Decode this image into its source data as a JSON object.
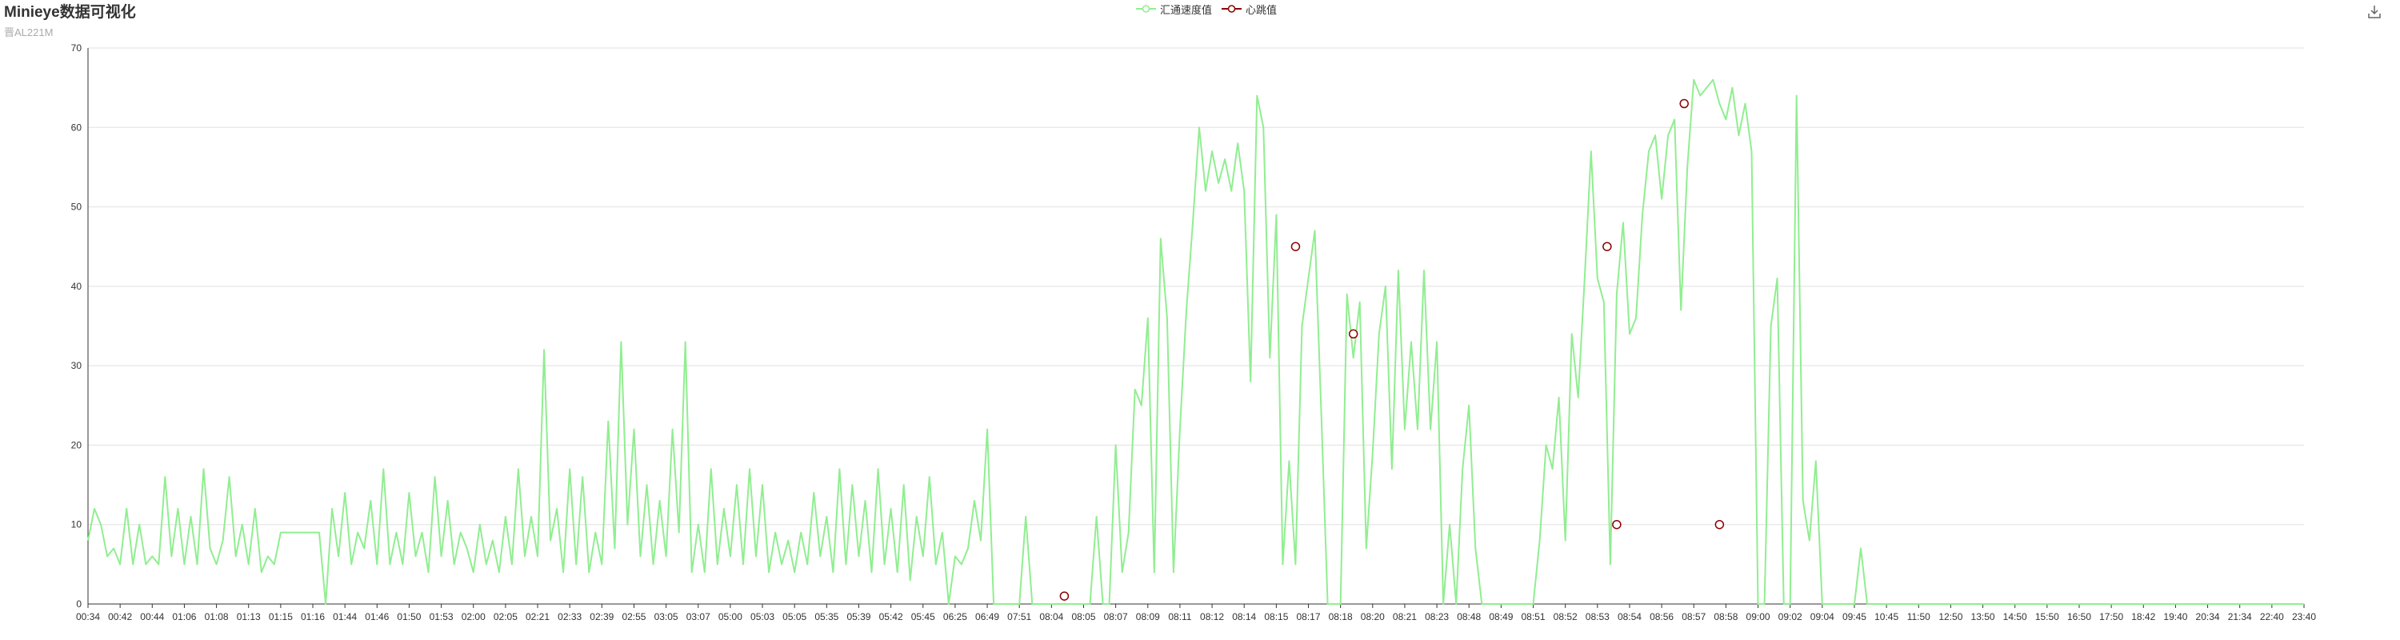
{
  "header": {
    "title": "Minieye数据可视化",
    "subtitle": "晋AL221M"
  },
  "legend": [
    {
      "name": "汇通速度值",
      "color": "#90EE90"
    },
    {
      "name": "心跳值",
      "color": "#8B0000"
    }
  ],
  "toolbox": {
    "icon": "download-icon"
  },
  "chart_data": {
    "type": "line",
    "ylim": [
      0,
      70
    ],
    "yticks": [
      0,
      10,
      20,
      30,
      40,
      50,
      60,
      70
    ],
    "grid": true,
    "legend_position": "top-center",
    "x_tick_labels": [
      "00:34",
      "00:42",
      "00:44",
      "01:06",
      "01:08",
      "01:13",
      "01:15",
      "01:16",
      "01:44",
      "01:46",
      "01:50",
      "01:53",
      "02:00",
      "02:05",
      "02:21",
      "02:33",
      "02:39",
      "02:55",
      "03:05",
      "03:07",
      "05:00",
      "05:03",
      "05:05",
      "05:35",
      "05:39",
      "05:42",
      "05:45",
      "06:25",
      "06:49",
      "07:51",
      "08:04",
      "08:05",
      "08:07",
      "08:09",
      "08:11",
      "08:12",
      "08:14",
      "08:15",
      "08:17",
      "08:18",
      "08:20",
      "08:21",
      "08:23",
      "08:48",
      "08:49",
      "08:51",
      "08:52",
      "08:53",
      "08:54",
      "08:56",
      "08:57",
      "08:58",
      "09:00",
      "09:02",
      "09:04",
      "09:45",
      "10:45",
      "11:50",
      "12:50",
      "13:50",
      "14:50",
      "15:50",
      "16:50",
      "17:50",
      "18:42",
      "19:40",
      "20:34",
      "21:34",
      "22:40",
      "23:40"
    ],
    "series": [
      {
        "name": "汇通速度值",
        "color": "#90EE90",
        "kind": "line",
        "points": [
          [
            0,
            8
          ],
          [
            0.2,
            12
          ],
          [
            0.4,
            10
          ],
          [
            0.6,
            6
          ],
          [
            0.8,
            7
          ],
          [
            1,
            5
          ],
          [
            1.2,
            12
          ],
          [
            1.4,
            5
          ],
          [
            1.6,
            10
          ],
          [
            1.8,
            5
          ],
          [
            2,
            6
          ],
          [
            2.2,
            5
          ],
          [
            2.4,
            16
          ],
          [
            2.6,
            6
          ],
          [
            2.8,
            12
          ],
          [
            3,
            5
          ],
          [
            3.2,
            11
          ],
          [
            3.4,
            5
          ],
          [
            3.6,
            17
          ],
          [
            3.8,
            7
          ],
          [
            4,
            5
          ],
          [
            4.2,
            8
          ],
          [
            4.4,
            16
          ],
          [
            4.6,
            6
          ],
          [
            4.8,
            10
          ],
          [
            5,
            5
          ],
          [
            5.2,
            12
          ],
          [
            5.4,
            4
          ],
          [
            5.6,
            6
          ],
          [
            5.8,
            5
          ],
          [
            6,
            9
          ],
          [
            6.5,
            9
          ],
          [
            7,
            9
          ],
          [
            7.2,
            9
          ],
          [
            7.4,
            0
          ],
          [
            7.6,
            12
          ],
          [
            7.8,
            6
          ],
          [
            8,
            14
          ],
          [
            8.2,
            5
          ],
          [
            8.4,
            9
          ],
          [
            8.6,
            7
          ],
          [
            8.8,
            13
          ],
          [
            9,
            5
          ],
          [
            9.2,
            17
          ],
          [
            9.4,
            5
          ],
          [
            9.6,
            9
          ],
          [
            9.8,
            5
          ],
          [
            10,
            14
          ],
          [
            10.2,
            6
          ],
          [
            10.4,
            9
          ],
          [
            10.6,
            4
          ],
          [
            10.8,
            16
          ],
          [
            11,
            6
          ],
          [
            11.2,
            13
          ],
          [
            11.4,
            5
          ],
          [
            11.6,
            9
          ],
          [
            11.8,
            7
          ],
          [
            12,
            4
          ],
          [
            12.2,
            10
          ],
          [
            12.4,
            5
          ],
          [
            12.6,
            8
          ],
          [
            12.8,
            4
          ],
          [
            13,
            11
          ],
          [
            13.2,
            5
          ],
          [
            13.4,
            17
          ],
          [
            13.6,
            6
          ],
          [
            13.8,
            11
          ],
          [
            14,
            6
          ],
          [
            14.2,
            32
          ],
          [
            14.4,
            8
          ],
          [
            14.6,
            12
          ],
          [
            14.8,
            4
          ],
          [
            15,
            17
          ],
          [
            15.2,
            5
          ],
          [
            15.4,
            16
          ],
          [
            15.6,
            4
          ],
          [
            15.8,
            9
          ],
          [
            16,
            5
          ],
          [
            16.2,
            23
          ],
          [
            16.4,
            7
          ],
          [
            16.6,
            33
          ],
          [
            16.8,
            10
          ],
          [
            17,
            22
          ],
          [
            17.2,
            6
          ],
          [
            17.4,
            15
          ],
          [
            17.6,
            5
          ],
          [
            17.8,
            13
          ],
          [
            18,
            6
          ],
          [
            18.2,
            22
          ],
          [
            18.4,
            9
          ],
          [
            18.6,
            33
          ],
          [
            18.8,
            4
          ],
          [
            19,
            10
          ],
          [
            19.2,
            4
          ],
          [
            19.4,
            17
          ],
          [
            19.6,
            5
          ],
          [
            19.8,
            12
          ],
          [
            20,
            6
          ],
          [
            20.2,
            15
          ],
          [
            20.4,
            5
          ],
          [
            20.6,
            17
          ],
          [
            20.8,
            6
          ],
          [
            21,
            15
          ],
          [
            21.2,
            4
          ],
          [
            21.4,
            9
          ],
          [
            21.6,
            5
          ],
          [
            21.8,
            8
          ],
          [
            22,
            4
          ],
          [
            22.2,
            9
          ],
          [
            22.4,
            5
          ],
          [
            22.6,
            14
          ],
          [
            22.8,
            6
          ],
          [
            23,
            11
          ],
          [
            23.2,
            4
          ],
          [
            23.4,
            17
          ],
          [
            23.6,
            5
          ],
          [
            23.8,
            15
          ],
          [
            24,
            6
          ],
          [
            24.2,
            13
          ],
          [
            24.4,
            4
          ],
          [
            24.6,
            17
          ],
          [
            24.8,
            5
          ],
          [
            25,
            12
          ],
          [
            25.2,
            4
          ],
          [
            25.4,
            15
          ],
          [
            25.6,
            3
          ],
          [
            25.8,
            11
          ],
          [
            26,
            6
          ],
          [
            26.2,
            16
          ],
          [
            26.4,
            5
          ],
          [
            26.6,
            9
          ],
          [
            26.8,
            0
          ],
          [
            27,
            6
          ],
          [
            27.2,
            5
          ],
          [
            27.4,
            7
          ],
          [
            27.6,
            13
          ],
          [
            27.8,
            8
          ],
          [
            28,
            22
          ],
          [
            28.2,
            0
          ],
          [
            28.4,
            0
          ],
          [
            28.6,
            0
          ],
          [
            28.8,
            0
          ],
          [
            29,
            0
          ],
          [
            29.2,
            11
          ],
          [
            29.4,
            0
          ],
          [
            29.6,
            0
          ],
          [
            29.8,
            0
          ],
          [
            30,
            0
          ],
          [
            30.2,
            0
          ],
          [
            30.4,
            0
          ],
          [
            30.6,
            0
          ],
          [
            30.8,
            0
          ],
          [
            31,
            0
          ],
          [
            31.2,
            0
          ],
          [
            31.4,
            11
          ],
          [
            31.6,
            0
          ],
          [
            31.8,
            0
          ],
          [
            32,
            20
          ],
          [
            32.2,
            4
          ],
          [
            32.4,
            9
          ],
          [
            32.6,
            27
          ],
          [
            32.8,
            25
          ],
          [
            33,
            36
          ],
          [
            33.2,
            4
          ],
          [
            33.4,
            46
          ],
          [
            33.6,
            36
          ],
          [
            33.8,
            4
          ],
          [
            34,
            22
          ],
          [
            34.2,
            37
          ],
          [
            34.4,
            48
          ],
          [
            34.6,
            60
          ],
          [
            34.8,
            52
          ],
          [
            35,
            57
          ],
          [
            35.2,
            53
          ],
          [
            35.4,
            56
          ],
          [
            35.6,
            52
          ],
          [
            35.8,
            58
          ],
          [
            36,
            52
          ],
          [
            36.2,
            28
          ],
          [
            36.4,
            64
          ],
          [
            36.6,
            60
          ],
          [
            36.8,
            31
          ],
          [
            37,
            49
          ],
          [
            37.2,
            5
          ],
          [
            37.4,
            18
          ],
          [
            37.6,
            5
          ],
          [
            37.8,
            35
          ],
          [
            38,
            41
          ],
          [
            38.2,
            47
          ],
          [
            38.4,
            24
          ],
          [
            38.6,
            0
          ],
          [
            38.8,
            0
          ],
          [
            39,
            0
          ],
          [
            39.2,
            39
          ],
          [
            39.4,
            31
          ],
          [
            39.6,
            38
          ],
          [
            39.8,
            7
          ],
          [
            40,
            19
          ],
          [
            40.2,
            34
          ],
          [
            40.4,
            40
          ],
          [
            40.6,
            17
          ],
          [
            40.8,
            42
          ],
          [
            41,
            22
          ],
          [
            41.2,
            33
          ],
          [
            41.4,
            22
          ],
          [
            41.6,
            42
          ],
          [
            41.8,
            22
          ],
          [
            42,
            33
          ],
          [
            42.2,
            0
          ],
          [
            42.4,
            10
          ],
          [
            42.6,
            0
          ],
          [
            42.8,
            17
          ],
          [
            43,
            25
          ],
          [
            43.2,
            7
          ],
          [
            43.4,
            0
          ],
          [
            43.6,
            0
          ],
          [
            43.8,
            0
          ],
          [
            44,
            0
          ],
          [
            44.2,
            0
          ],
          [
            44.4,
            0
          ],
          [
            44.6,
            0
          ],
          [
            44.8,
            0
          ],
          [
            45,
            0
          ],
          [
            45.2,
            8
          ],
          [
            45.4,
            20
          ],
          [
            45.6,
            17
          ],
          [
            45.8,
            26
          ],
          [
            46,
            8
          ],
          [
            46.2,
            34
          ],
          [
            46.4,
            26
          ],
          [
            46.6,
            41
          ],
          [
            46.8,
            57
          ],
          [
            47,
            41
          ],
          [
            47.2,
            38
          ],
          [
            47.4,
            5
          ],
          [
            47.6,
            39
          ],
          [
            47.8,
            48
          ],
          [
            48,
            34
          ],
          [
            48.2,
            36
          ],
          [
            48.4,
            49
          ],
          [
            48.6,
            57
          ],
          [
            48.8,
            59
          ],
          [
            49,
            51
          ],
          [
            49.2,
            59
          ],
          [
            49.4,
            61
          ],
          [
            49.6,
            37
          ],
          [
            49.8,
            55
          ],
          [
            50,
            66
          ],
          [
            50.2,
            64
          ],
          [
            50.4,
            65
          ],
          [
            50.6,
            66
          ],
          [
            50.8,
            63
          ],
          [
            51,
            61
          ],
          [
            51.2,
            65
          ],
          [
            51.4,
            59
          ],
          [
            51.6,
            63
          ],
          [
            51.8,
            57
          ],
          [
            52,
            0
          ],
          [
            52.2,
            0
          ],
          [
            52.4,
            35
          ],
          [
            52.6,
            41
          ],
          [
            52.8,
            0
          ],
          [
            53,
            0
          ],
          [
            53.2,
            64
          ],
          [
            53.4,
            13
          ],
          [
            53.6,
            8
          ],
          [
            53.8,
            18
          ],
          [
            54,
            0
          ],
          [
            54.2,
            0
          ],
          [
            54.4,
            0
          ],
          [
            54.6,
            0
          ],
          [
            54.8,
            0
          ],
          [
            55,
            0
          ],
          [
            55.2,
            7
          ],
          [
            55.4,
            0
          ],
          [
            56,
            0
          ],
          [
            57,
            0
          ],
          [
            58,
            0
          ],
          [
            59,
            0
          ],
          [
            60,
            0
          ],
          [
            61,
            0
          ],
          [
            62,
            0
          ],
          [
            63,
            0
          ],
          [
            64,
            0
          ],
          [
            65,
            0
          ],
          [
            66,
            0
          ],
          [
            67,
            0
          ],
          [
            68,
            0
          ],
          [
            69,
            0
          ]
        ]
      },
      {
        "name": "心跳值",
        "color": "#8B0000",
        "kind": "scatter",
        "points": [
          [
            30.4,
            1
          ],
          [
            37.6,
            45
          ],
          [
            39.4,
            34
          ],
          [
            47.3,
            45
          ],
          [
            47.6,
            10
          ],
          [
            49.7,
            63
          ],
          [
            50.8,
            10
          ]
        ]
      }
    ]
  }
}
